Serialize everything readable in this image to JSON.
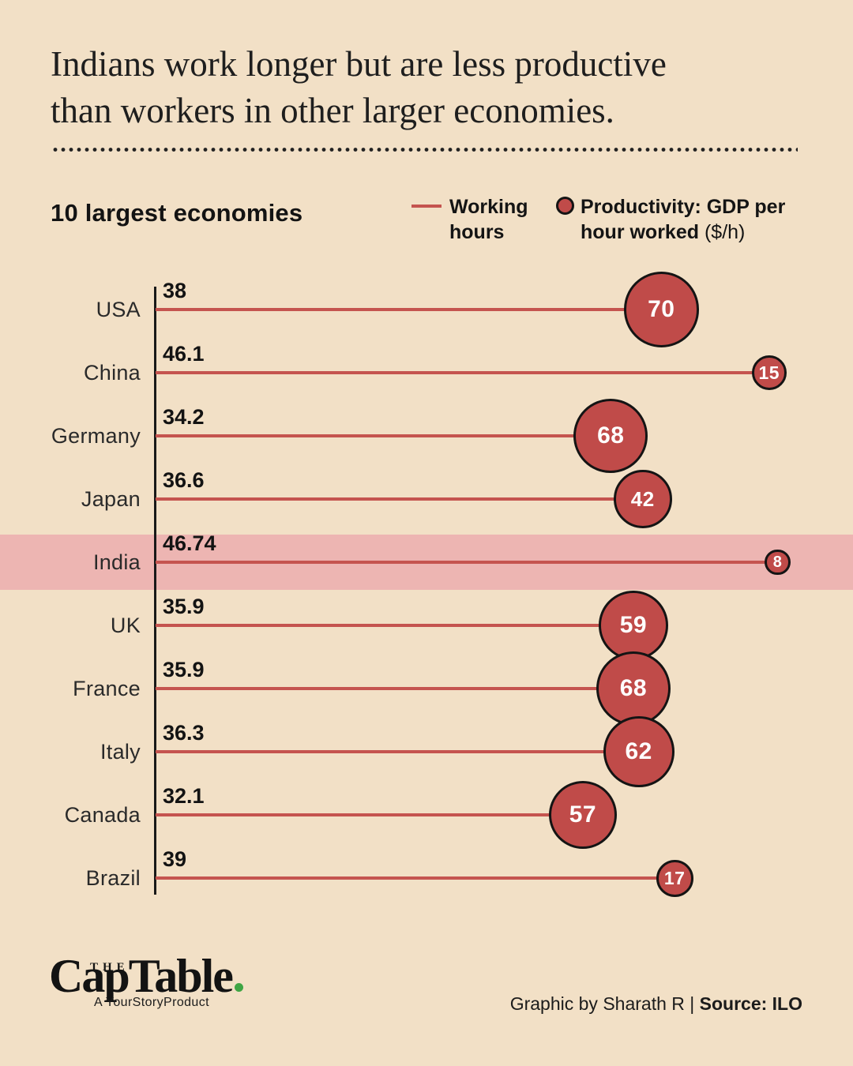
{
  "title": {
    "line1": "Indians work longer but are less productive",
    "line2": "than workers in other larger economies."
  },
  "section_heading": "10 largest economies",
  "legend": {
    "working_hours": "Working hours",
    "productivity_bold": "Productivity: GDP per hour worked",
    "productivity_unit": "($/h)"
  },
  "chart_data": {
    "type": "bar",
    "variant": "horizontal_lollipop_with_bubble",
    "title": "10 largest economies",
    "categories": [
      "USA",
      "China",
      "Germany",
      "Japan",
      "India",
      "UK",
      "France",
      "Italy",
      "Canada",
      "Brazil"
    ],
    "series": [
      {
        "name": "Working hours",
        "values": [
          38,
          46.1,
          34.2,
          36.6,
          46.74,
          35.9,
          35.9,
          36.3,
          32.1,
          39
        ]
      },
      {
        "name": "Productivity: GDP per hour worked ($/h)",
        "values": [
          70,
          15,
          68,
          42,
          8,
          59,
          68,
          62,
          57,
          17
        ]
      }
    ],
    "highlighted_category": "India",
    "encoding": {
      "line_length": "Working hours",
      "bubble_size_and_label": "Productivity: GDP per hour worked ($/h)"
    },
    "legend_position": "top-right",
    "grid": false,
    "value_labels_shown": true
  },
  "footer": {
    "logo_the": "THE",
    "logo_main": "CapTable",
    "logo_sub": "A YourStoryProduct",
    "credit_regular": "Graphic by Sharath R | ",
    "credit_bold": "Source: ILO"
  },
  "colors": {
    "background": "#f2e0c6",
    "bubble_fill": "#c04b49",
    "bubble_stroke": "#141414",
    "working_hours_line": "#c5544f",
    "highlight_band": "#edb5b2",
    "text": "#1d1d1d",
    "logo_green": "#3fa544"
  }
}
